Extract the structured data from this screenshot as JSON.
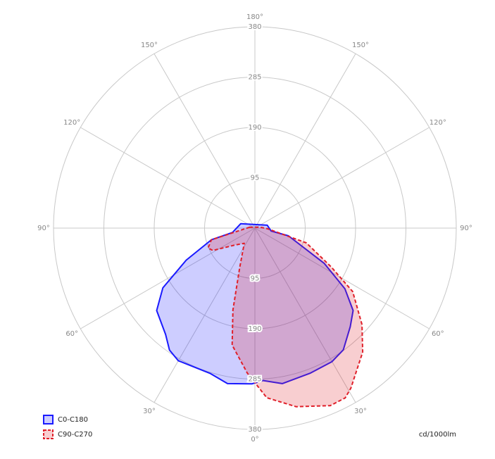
{
  "chart_data": {
    "type": "polar",
    "unit": "cd/1000lm",
    "rlim": [
      0,
      380
    ],
    "rticks": [
      95,
      190,
      285,
      380
    ],
    "angle_ticks": [
      {
        "value": 0,
        "label": "0°"
      },
      {
        "value": 30,
        "label": "30°"
      },
      {
        "value": 60,
        "label": "60°"
      },
      {
        "value": 90,
        "label": "90°"
      },
      {
        "value": 120,
        "label": "120°"
      },
      {
        "value": 150,
        "label": "150°"
      },
      {
        "value": 180,
        "label": "180°"
      }
    ],
    "grid": true,
    "legend": "bottom-left",
    "series": [
      {
        "name": "C0-C180",
        "color": "#1a1aff",
        "dashed": false,
        "angles": [
          -107,
          -79,
          -75,
          -65,
          -57,
          -50,
          -40,
          -35,
          -30,
          -17,
          -10,
          -1,
          3,
          10,
          21,
          30,
          36,
          44,
          50,
          56,
          63,
          77,
          80,
          103
        ],
        "values": [
          28,
          43,
          85,
          143,
          207,
          242,
          262,
          281,
          289,
          287,
          298,
          294,
          288,
          298,
          293,
          291,
          284,
          259,
          242,
          205,
          147,
          65,
          31,
          24
        ]
      },
      {
        "name": "C90-C270",
        "color": "#e0202a",
        "dashed": true,
        "angles": [
          -100,
          -75,
          -67,
          -62,
          -50,
          -35,
          -21,
          -15,
          -11,
          -3,
          4,
          13,
          23,
          28,
          31,
          41,
          48,
          57,
          63,
          74,
          87,
          100
        ],
        "values": [
          10,
          85,
          96,
          90,
          50,
          35,
          80,
          160,
          225,
          274,
          321,
          346,
          364,
          363,
          352,
          310,
          272,
          220,
          162,
          101,
          24,
          10
        ]
      }
    ]
  }
}
